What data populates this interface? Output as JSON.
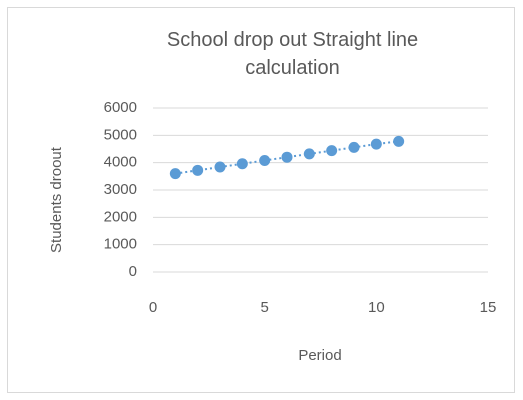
{
  "chart_data": {
    "type": "scatter",
    "title": "School drop out  Straight line calculation",
    "x_label": "Period",
    "y_label": "Students droout",
    "series": [
      {
        "name": "Students droout",
        "color": "#5b9bd5",
        "x": [
          1,
          2,
          3,
          4,
          5,
          6,
          7,
          8,
          9,
          10,
          11
        ],
        "values": [
          3600,
          3720,
          3840,
          3960,
          4080,
          4200,
          4320,
          4440,
          4560,
          4680,
          4780
        ]
      }
    ],
    "xlim": [
      0,
      15
    ],
    "xticks": [
      0,
      5,
      10,
      15
    ],
    "ylim": [
      0,
      6000
    ],
    "yticks": [
      0,
      1000,
      2000,
      3000,
      4000,
      5000,
      6000
    ],
    "grid": true,
    "trendline": true
  }
}
